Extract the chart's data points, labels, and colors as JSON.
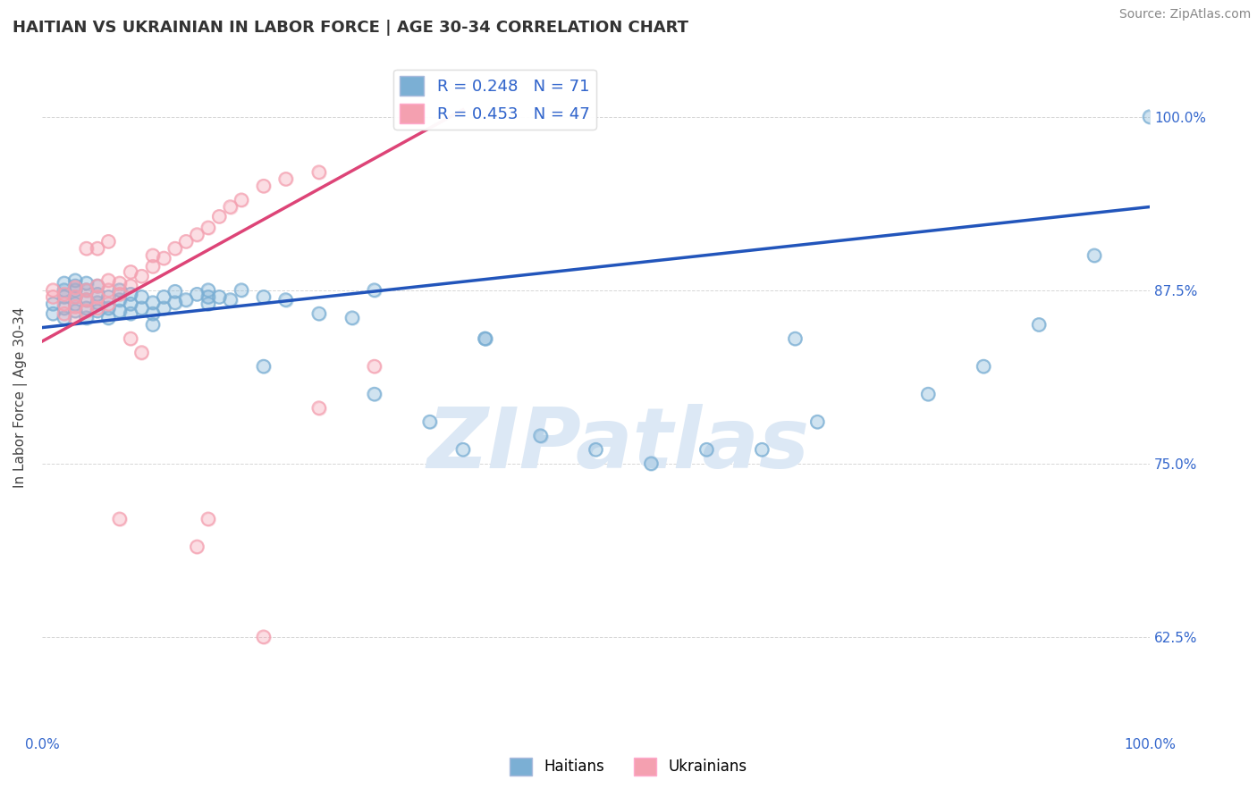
{
  "title": "HAITIAN VS UKRAINIAN IN LABOR FORCE | AGE 30-34 CORRELATION CHART",
  "source_text": "Source: ZipAtlas.com",
  "ylabel": "In Labor Force | Age 30-34",
  "xlim": [
    0,
    1.0
  ],
  "ylim": [
    0.555,
    1.04
  ],
  "yticks": [
    0.625,
    0.75,
    0.875,
    1.0
  ],
  "ytick_labels": [
    "62.5%",
    "75.0%",
    "87.5%",
    "100.0%"
  ],
  "r_blue": 0.248,
  "n_blue": 71,
  "r_pink": 0.453,
  "n_pink": 47,
  "blue_color": "#7BAFD4",
  "pink_color": "#F4A0B0",
  "blue_line_color": "#2255BB",
  "pink_line_color": "#DD4477",
  "watermark_color": "#DCE8F5",
  "legend_label_blue": "Haitians",
  "legend_label_pink": "Ukrainians",
  "blue_line_x0": 0.0,
  "blue_line_y0": 0.848,
  "blue_line_x1": 1.0,
  "blue_line_y1": 0.935,
  "pink_line_x0": 0.0,
  "pink_line_y0": 0.838,
  "pink_line_x1": 0.38,
  "pink_line_y1": 1.005,
  "blue_scatter_x": [
    0.01,
    0.01,
    0.02,
    0.02,
    0.02,
    0.02,
    0.02,
    0.03,
    0.03,
    0.03,
    0.03,
    0.03,
    0.03,
    0.04,
    0.04,
    0.04,
    0.04,
    0.04,
    0.05,
    0.05,
    0.05,
    0.05,
    0.06,
    0.06,
    0.06,
    0.07,
    0.07,
    0.07,
    0.08,
    0.08,
    0.08,
    0.09,
    0.09,
    0.1,
    0.1,
    0.11,
    0.11,
    0.12,
    0.12,
    0.13,
    0.14,
    0.15,
    0.15,
    0.16,
    0.17,
    0.18,
    0.2,
    0.22,
    0.25,
    0.28,
    0.3,
    0.35,
    0.38,
    0.4,
    0.45,
    0.5,
    0.55,
    0.6,
    0.65,
    0.7,
    0.8,
    0.85,
    0.9,
    0.95,
    1.0,
    0.68,
    0.4,
    0.3,
    0.2,
    0.15,
    0.1
  ],
  "blue_scatter_y": [
    0.858,
    0.865,
    0.855,
    0.862,
    0.87,
    0.875,
    0.88,
    0.86,
    0.865,
    0.87,
    0.875,
    0.878,
    0.882,
    0.855,
    0.862,
    0.868,
    0.875,
    0.88,
    0.86,
    0.866,
    0.872,
    0.878,
    0.855,
    0.862,
    0.87,
    0.86,
    0.868,
    0.875,
    0.858,
    0.865,
    0.872,
    0.862,
    0.87,
    0.858,
    0.866,
    0.862,
    0.87,
    0.866,
    0.874,
    0.868,
    0.872,
    0.865,
    0.875,
    0.87,
    0.868,
    0.875,
    0.87,
    0.868,
    0.858,
    0.855,
    0.875,
    0.78,
    0.76,
    0.84,
    0.77,
    0.76,
    0.75,
    0.76,
    0.76,
    0.78,
    0.8,
    0.82,
    0.85,
    0.9,
    1.0,
    0.84,
    0.84,
    0.8,
    0.82,
    0.87,
    0.85
  ],
  "pink_scatter_x": [
    0.01,
    0.01,
    0.02,
    0.02,
    0.02,
    0.03,
    0.03,
    0.03,
    0.03,
    0.04,
    0.04,
    0.04,
    0.05,
    0.05,
    0.05,
    0.06,
    0.06,
    0.06,
    0.07,
    0.07,
    0.08,
    0.08,
    0.09,
    0.1,
    0.1,
    0.11,
    0.12,
    0.13,
    0.14,
    0.15,
    0.16,
    0.17,
    0.18,
    0.2,
    0.22,
    0.25,
    0.07,
    0.08,
    0.09,
    0.04,
    0.05,
    0.06,
    0.15,
    0.2,
    0.25,
    0.3,
    0.14
  ],
  "pink_scatter_y": [
    0.87,
    0.875,
    0.858,
    0.865,
    0.872,
    0.855,
    0.863,
    0.87,
    0.877,
    0.86,
    0.868,
    0.875,
    0.862,
    0.87,
    0.878,
    0.865,
    0.875,
    0.882,
    0.872,
    0.88,
    0.878,
    0.888,
    0.885,
    0.892,
    0.9,
    0.898,
    0.905,
    0.91,
    0.915,
    0.92,
    0.928,
    0.935,
    0.94,
    0.95,
    0.955,
    0.96,
    0.71,
    0.84,
    0.83,
    0.905,
    0.905,
    0.91,
    0.71,
    0.625,
    0.79,
    0.82,
    0.69
  ]
}
